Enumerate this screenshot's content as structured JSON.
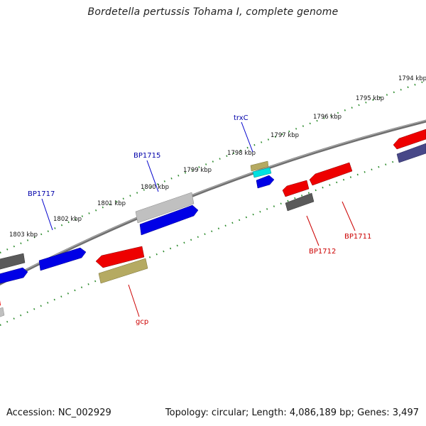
{
  "header": {
    "title": "Bordetella pertussis Tohama I, complete genome"
  },
  "footer": {
    "accession": "Accession: NC_002929",
    "summary": "Topology: circular; Length: 4,086,189 bp; Genes: 3,497"
  },
  "ruler_labels": [
    "1794 kbp",
    "1795 kbp",
    "1796 kbp",
    "1797 kbp",
    "1798 kbp",
    "1799 kbp",
    "1800 kbp",
    "1801 kbp",
    "1802 kbp",
    "1803 kbp"
  ],
  "gene_labels": {
    "trxC": "trxC",
    "BP1715": "BP1715",
    "BP1717": "BP1717",
    "BP1712": "BP1712",
    "BP1711": "BP1711",
    "gcp": "gcp"
  },
  "colors": {
    "backbone": "#777777",
    "tick": "#228822",
    "forward_label": "#0000aa",
    "reverse_label": "#cc0000",
    "blue": "#0000ee",
    "red": "#ee0000",
    "gray": "#555555",
    "silver": "#bbbbbb",
    "olive": "#b0a860",
    "cyan": "#00dddd",
    "indigo": "#444488"
  }
}
